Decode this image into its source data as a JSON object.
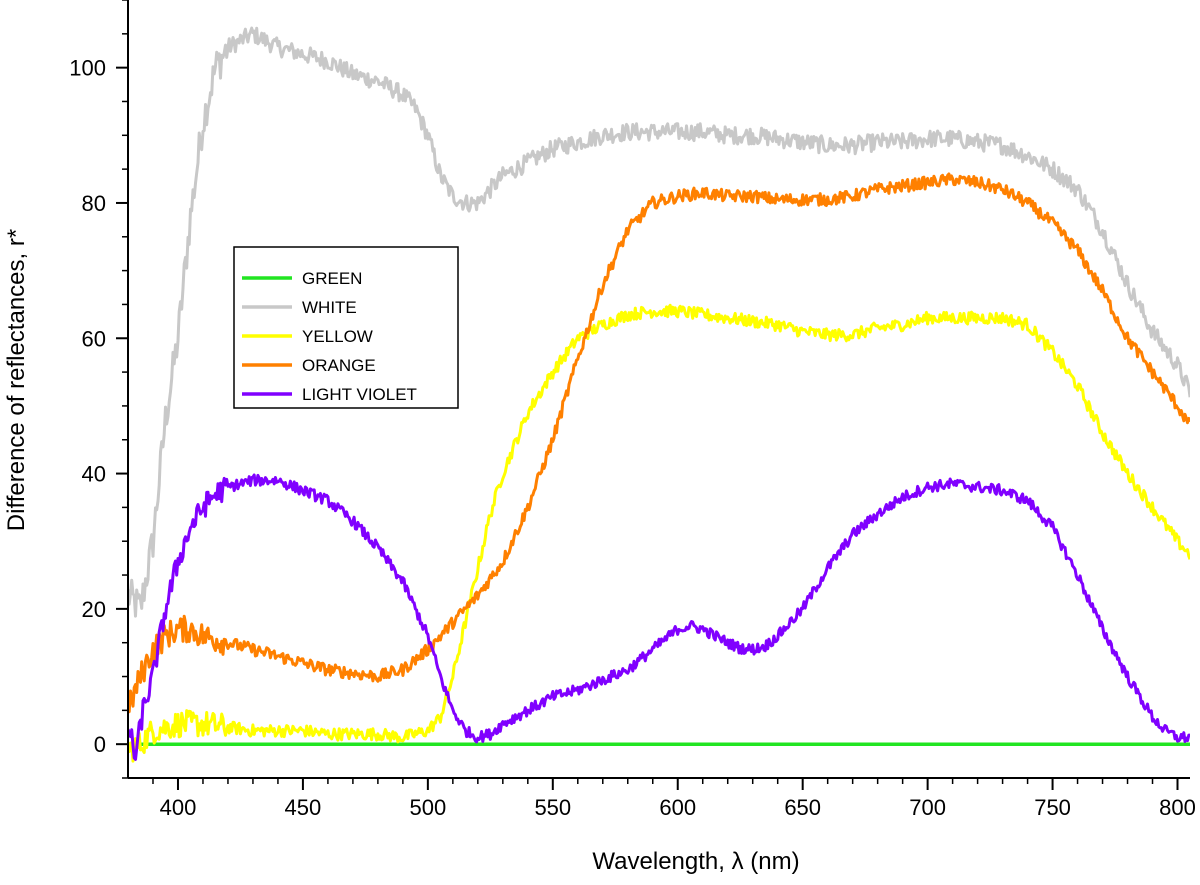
{
  "chart_data": {
    "type": "line",
    "xlabel": "Wavelength, λ (nm)",
    "ylabel": "Difference of reflectances, r*",
    "xlim": [
      380,
      805
    ],
    "ylim": [
      -5,
      110
    ],
    "xticks": [
      400,
      450,
      500,
      550,
      600,
      650,
      700,
      750,
      800
    ],
    "yticks": [
      0,
      20,
      40,
      60,
      80,
      100
    ],
    "grid": false,
    "legend_position": "upper-left (inside plot)",
    "series": [
      {
        "name": "GREEN",
        "color": "#22e522",
        "x": [
          380,
          805
        ],
        "y": [
          0,
          0
        ]
      },
      {
        "name": "WHITE",
        "color": "#c8c8c8",
        "x": [
          380,
          385,
          390,
          395,
          400,
          405,
          410,
          415,
          420,
          425,
          430,
          435,
          440,
          450,
          460,
          470,
          480,
          490,
          495,
          500,
          505,
          510,
          515,
          520,
          525,
          530,
          540,
          550,
          560,
          570,
          580,
          590,
          600,
          610,
          620,
          630,
          640,
          650,
          660,
          670,
          680,
          690,
          700,
          710,
          720,
          730,
          740,
          750,
          760,
          770,
          780,
          790,
          800,
          805
        ],
        "y": [
          22,
          20,
          30,
          48,
          60,
          78,
          92,
          100,
          103,
          104,
          105,
          104,
          103,
          102,
          101,
          99,
          98,
          96,
          94,
          90,
          84,
          81,
          80,
          80,
          82,
          84,
          86,
          88,
          89,
          90,
          90.5,
          90.5,
          90.5,
          90.5,
          90,
          90,
          89.5,
          89,
          88.5,
          88.5,
          89,
          89,
          89.5,
          89.5,
          89,
          88.5,
          87,
          85,
          82,
          76,
          68,
          61,
          56,
          52
        ]
      },
      {
        "name": "YELLOW",
        "color": "#ffff00",
        "x": [
          380,
          385,
          390,
          400,
          410,
          420,
          430,
          440,
          450,
          460,
          470,
          480,
          490,
          495,
          500,
          505,
          510,
          515,
          520,
          525,
          530,
          540,
          550,
          560,
          570,
          580,
          590,
          600,
          610,
          620,
          630,
          640,
          650,
          660,
          670,
          680,
          690,
          700,
          710,
          720,
          730,
          740,
          750,
          760,
          770,
          780,
          790,
          800,
          805
        ],
        "y": [
          -1,
          0,
          2,
          3,
          3,
          2.5,
          2,
          2,
          2,
          1.5,
          1.5,
          1.5,
          1,
          1.5,
          2,
          4,
          10,
          18,
          26,
          34,
          40,
          49,
          55,
          60,
          62,
          63.5,
          64,
          64,
          63.5,
          63,
          62.5,
          62,
          61,
          60.5,
          60.5,
          61.5,
          62,
          63,
          63,
          63,
          63,
          62,
          58,
          53,
          46,
          40,
          35,
          30,
          28
        ]
      },
      {
        "name": "ORANGE",
        "color": "#ff8000",
        "x": [
          380,
          385,
          390,
          395,
          400,
          405,
          410,
          415,
          420,
          430,
          440,
          450,
          460,
          470,
          480,
          490,
          500,
          510,
          520,
          530,
          540,
          550,
          560,
          570,
          580,
          590,
          600,
          610,
          620,
          630,
          640,
          650,
          660,
          670,
          680,
          690,
          700,
          710,
          720,
          730,
          740,
          750,
          760,
          770,
          780,
          790,
          800,
          805
        ],
        "y": [
          5,
          10,
          14,
          16,
          17,
          17,
          16,
          15.5,
          15,
          14,
          13,
          12,
          11,
          10.5,
          10,
          11,
          14,
          18,
          22,
          27,
          35,
          45,
          57,
          68,
          76,
          80,
          81,
          81.5,
          81,
          81,
          80.5,
          80.5,
          80.5,
          81,
          82,
          82.5,
          83,
          83.5,
          83,
          82,
          80,
          77,
          73,
          67,
          60,
          55,
          50,
          47
        ]
      },
      {
        "name": "LIGHT VIOLET",
        "color": "#8000ff",
        "x": [
          380,
          383,
          386,
          390,
          395,
          400,
          405,
          410,
          415,
          420,
          430,
          440,
          450,
          460,
          470,
          480,
          490,
          500,
          505,
          510,
          515,
          520,
          525,
          530,
          540,
          550,
          560,
          570,
          580,
          590,
          600,
          605,
          610,
          615,
          620,
          625,
          630,
          635,
          640,
          650,
          660,
          670,
          680,
          690,
          700,
          710,
          720,
          730,
          740,
          750,
          760,
          770,
          780,
          790,
          795,
          800,
          805
        ],
        "y": [
          3,
          -2,
          5,
          10,
          20,
          27,
          32,
          35,
          37,
          38,
          39,
          39,
          37.5,
          36,
          33,
          29,
          24,
          16,
          10,
          5,
          2,
          1,
          1.5,
          3,
          5,
          7,
          8,
          9.5,
          11,
          14,
          17,
          17.5,
          17,
          16,
          15,
          14.2,
          14,
          14.5,
          16,
          20,
          26,
          31,
          34,
          36.5,
          38,
          38.5,
          38,
          37.5,
          36,
          32,
          25,
          17,
          10,
          4,
          2,
          1,
          1
        ]
      }
    ]
  }
}
